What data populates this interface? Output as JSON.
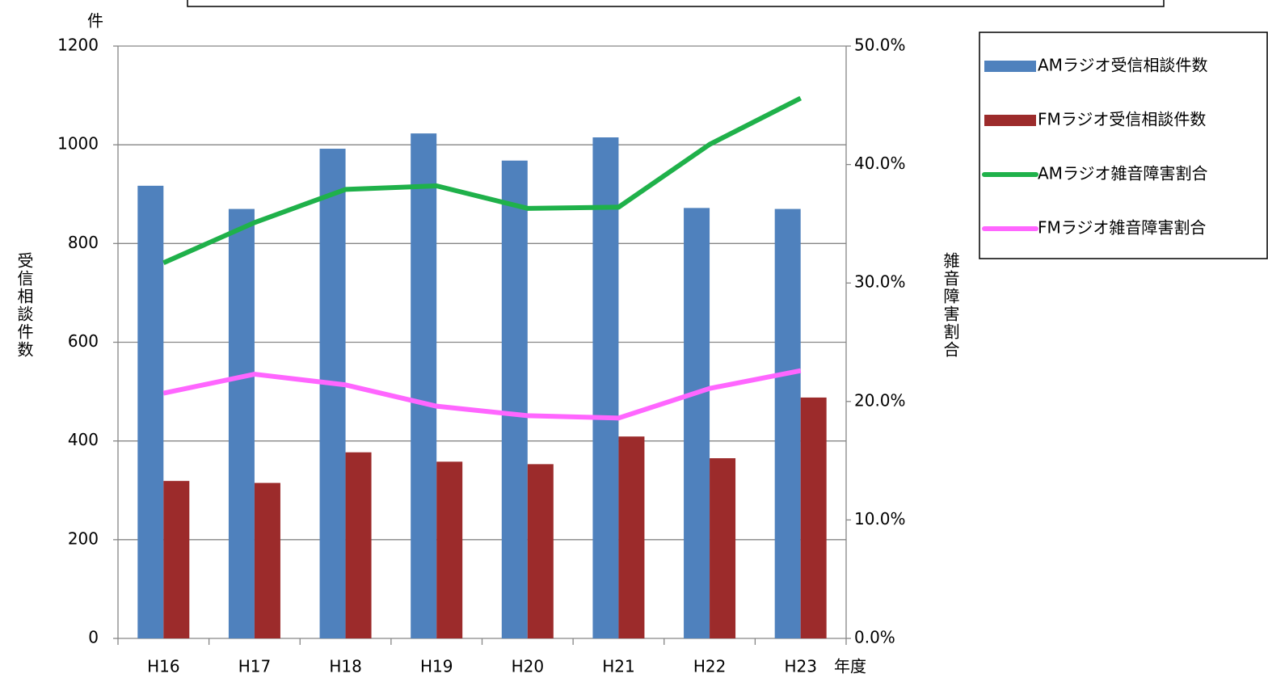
{
  "chart_data": {
    "type": "bar_line",
    "y_unit": "件",
    "y_label": "受信相談件数",
    "y2_label": "雑音障害割合",
    "x_label": "年度",
    "categories": [
      "H16",
      "H17",
      "H18",
      "H19",
      "H20",
      "H21",
      "H22",
      "H23"
    ],
    "series": [
      {
        "name": "AMラジオ受信相談件数",
        "type": "bar",
        "color": "#4f81bd",
        "values": [
          917,
          870,
          992,
          1023,
          968,
          1015,
          872,
          870
        ]
      },
      {
        "name": "FMラジオ受信相談件数",
        "type": "bar",
        "color": "#9c2b2b",
        "values": [
          319,
          315,
          377,
          358,
          353,
          409,
          365,
          488
        ]
      },
      {
        "name": "AMラジオ雑音障害割合",
        "type": "line",
        "axis": "y2",
        "color": "#1fb14a",
        "values": [
          31.7,
          35.1,
          37.9,
          38.2,
          36.3,
          36.4,
          41.7,
          45.6
        ]
      },
      {
        "name": "FMラジオ雑音障害割合",
        "type": "line",
        "axis": "y2",
        "color": "#ff66ff",
        "values": [
          20.7,
          22.3,
          21.4,
          19.6,
          18.8,
          18.6,
          21.1,
          22.6
        ]
      }
    ],
    "ylim": [
      0,
      1200
    ],
    "yticks": [
      0,
      200,
      400,
      600,
      800,
      1000,
      1200
    ],
    "y2lim": [
      0,
      50
    ],
    "y2ticks": [
      {
        "value": 0,
        "label": "0.0%"
      },
      {
        "value": 10,
        "label": "10.0%"
      },
      {
        "value": 20,
        "label": "20.0%"
      },
      {
        "value": 30,
        "label": "30.0%"
      },
      {
        "value": 40,
        "label": "40.0%"
      },
      {
        "value": 50,
        "label": "50.0%"
      }
    ],
    "grid": true,
    "legend": "right"
  }
}
